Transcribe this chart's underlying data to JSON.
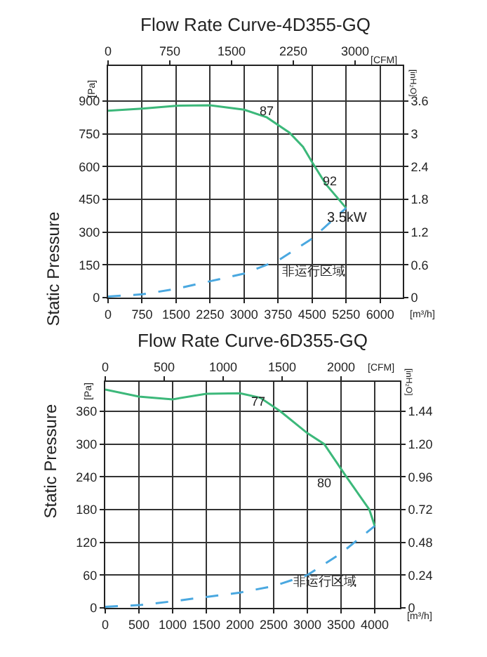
{
  "chart_data": [
    {
      "type": "line",
      "title": "Flow Rate Curve-4D355-GQ",
      "xlabel": "[m³/h]",
      "x2label": "[CFM]",
      "ylabel": "Static Pressure",
      "y2label": "[inH₂O]",
      "xlim": [
        0,
        6500
      ],
      "xticks": [
        0,
        750,
        1500,
        2250,
        3000,
        3750,
        4500,
        5250,
        6000
      ],
      "x2lim": [
        0,
        3580
      ],
      "x2ticks": [
        0,
        750,
        1500,
        2250,
        3000
      ],
      "ylim": [
        0,
        1060
      ],
      "yticks": [
        0,
        150,
        300,
        450,
        600,
        750,
        900
      ],
      "y2lim": [
        0,
        4.24
      ],
      "y2ticks": [
        0,
        0.6,
        1.2,
        1.8,
        2.4,
        3.0,
        3.6
      ],
      "grid": true,
      "marker": "none",
      "series": [
        {
          "color": "#3cb87a",
          "line_style": "solid",
          "x": [
            0,
            750,
            1500,
            2250,
            3000,
            3500,
            4000,
            4300,
            4500,
            4800,
            5250
          ],
          "values": [
            855,
            865,
            878,
            880,
            860,
            825,
            755,
            690,
            620,
            520,
            410
          ]
        },
        {
          "color": "#4aa8e0",
          "line_style": "dashed",
          "x": [
            0,
            750,
            1500,
            2250,
            3000,
            3750,
            4500,
            5250
          ],
          "values": [
            5,
            15,
            40,
            75,
            110,
            170,
            270,
            410
          ]
        }
      ],
      "annotations": [
        "[Pa]",
        "87",
        "92",
        "3.5kW",
        "非运行区域"
      ]
    },
    {
      "type": "line",
      "title": "Flow Rate Curve-6D355-GQ",
      "xlabel": "[m³/h]",
      "x2label": "[CFM]",
      "ylabel": "Static Pressure",
      "y2label": "[inH₂O]",
      "xlim": [
        0,
        4375
      ],
      "xticks": [
        0,
        500,
        1000,
        1500,
        2000,
        2500,
        3000,
        3500,
        4000
      ],
      "x2lim": [
        0,
        2500
      ],
      "x2ticks": [
        0,
        500,
        1000,
        1500,
        2000
      ],
      "ylim": [
        0,
        414
      ],
      "yticks": [
        0,
        60,
        120,
        180,
        240,
        300,
        360
      ],
      "y2lim": [
        0,
        1.656
      ],
      "y2ticks": [
        0,
        0.24,
        0.48,
        0.72,
        0.96,
        {
          "value": 1.2,
          "label": "1.20"
        },
        1.44
      ],
      "grid": true,
      "marker": "none",
      "series": [
        {
          "color": "#3cb87a",
          "line_style": "solid",
          "x": [
            0,
            500,
            1000,
            1500,
            2000,
            2300,
            2600,
            3000,
            3250,
            3580,
            3920,
            4000
          ],
          "values": [
            400,
            387,
            382,
            392,
            393,
            385,
            360,
            320,
            300,
            240,
            180,
            150
          ]
        },
        {
          "color": "#4aa8e0",
          "line_style": "dashed",
          "x": [
            0,
            500,
            1000,
            1500,
            2000,
            2500,
            3000,
            3500,
            4000
          ],
          "values": [
            2,
            5,
            12,
            20,
            28,
            40,
            60,
            100,
            150
          ]
        }
      ],
      "annotations": [
        "[Pa]",
        "77",
        "80",
        "非运行区域"
      ]
    }
  ]
}
